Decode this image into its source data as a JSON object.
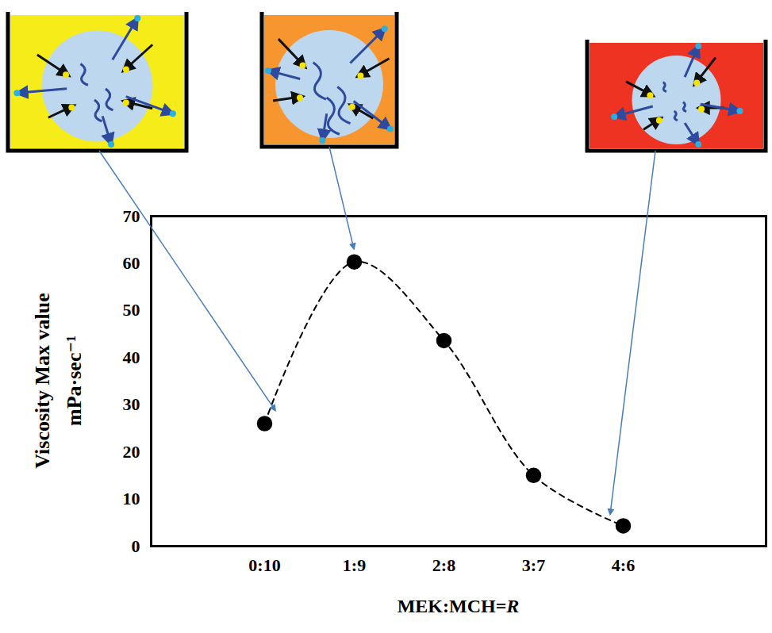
{
  "chart_data": {
    "type": "line",
    "x_label": "MEK:MCH=R",
    "y_label": [
      "Viscosity  Max value",
      "mPa·sec⁻¹"
    ],
    "categories": [
      "0:10",
      "1:9",
      "2:8",
      "3:7",
      "4:6"
    ],
    "values": [
      26,
      60.3,
      43.6,
      15,
      4.3
    ],
    "ylim": [
      0,
      70
    ],
    "yticks": [
      0,
      10,
      20,
      30,
      40,
      50,
      60,
      70
    ],
    "color": "#000000",
    "marker": "circle",
    "line_style": "dashed",
    "grid": false
  }
}
